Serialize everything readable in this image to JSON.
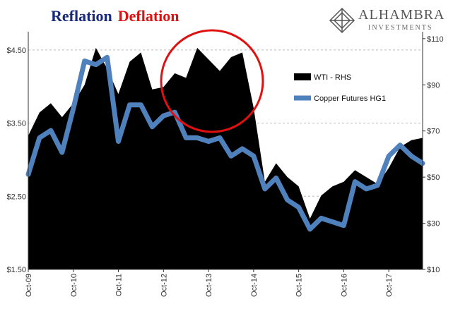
{
  "title": {
    "part1": "Reflation",
    "part2": "Deflation",
    "color1": "#1a2a7a",
    "color2": "#e01010"
  },
  "logo": {
    "brand": "ALHAMBRA",
    "sub": "INVESTMENTS",
    "icon": "diamond-lattice-icon"
  },
  "chart_data": {
    "type": "area",
    "grid": true,
    "legend_position": "upper-right inside plot",
    "x": [
      "Oct-09",
      "Jan-10",
      "Apr-10",
      "Jul-10",
      "Oct-10",
      "Jan-11",
      "Apr-11",
      "Jul-11",
      "Oct-11",
      "Jan-12",
      "Apr-12",
      "Jul-12",
      "Oct-12",
      "Jan-13",
      "Apr-13",
      "Jul-13",
      "Oct-13",
      "Jan-14",
      "Apr-14",
      "Jul-14",
      "Oct-14",
      "Jan-15",
      "Apr-15",
      "Jul-15",
      "Oct-15",
      "Jan-16",
      "Apr-16",
      "Jul-16",
      "Oct-16",
      "Jan-17",
      "Apr-17",
      "Jul-17",
      "Oct-17",
      "Jan-18",
      "Apr-18",
      "Jun-18"
    ],
    "x_tick_labels": [
      "Oct-09",
      "Oct-10",
      "Oct-11",
      "Oct-12",
      "Oct-13",
      "Oct-14",
      "Oct-15",
      "Oct-16",
      "Oct-17"
    ],
    "left_axis": {
      "ticks": [
        "$1.50",
        "$2.50",
        "$3.50",
        "$4.50"
      ],
      "ylim": [
        1.5,
        4.75
      ]
    },
    "right_axis": {
      "ticks": [
        "$10",
        "$30",
        "$50",
        "$70",
        "$90",
        "$110"
      ],
      "ylim": [
        10,
        113
      ]
    },
    "series": [
      {
        "name": "WTI - RHS",
        "axis": "right",
        "style": "area",
        "color": "#000000",
        "values": [
          68,
          78,
          82,
          76,
          82,
          90,
          106,
          97,
          86,
          100,
          104,
          88,
          89,
          95,
          93,
          106,
          101,
          96,
          102,
          104,
          80,
          48,
          56,
          50,
          46,
          32,
          42,
          46,
          48,
          53,
          50,
          47,
          54,
          63,
          66,
          67
        ]
      },
      {
        "name": "Copper Futures HG1",
        "axis": "left",
        "style": "line",
        "color": "#4f81bd",
        "values": [
          2.8,
          3.3,
          3.4,
          3.1,
          3.7,
          4.35,
          4.3,
          4.4,
          3.25,
          3.75,
          3.75,
          3.45,
          3.6,
          3.65,
          3.3,
          3.3,
          3.25,
          3.3,
          3.05,
          3.15,
          3.05,
          2.6,
          2.75,
          2.45,
          2.35,
          2.05,
          2.2,
          2.15,
          2.1,
          2.7,
          2.6,
          2.65,
          3.05,
          3.2,
          3.05,
          2.95
        ]
      }
    ],
    "annotations": [
      {
        "type": "circle",
        "color": "#e01010",
        "around": "Oct-12 to Oct-14 peak"
      }
    ]
  }
}
